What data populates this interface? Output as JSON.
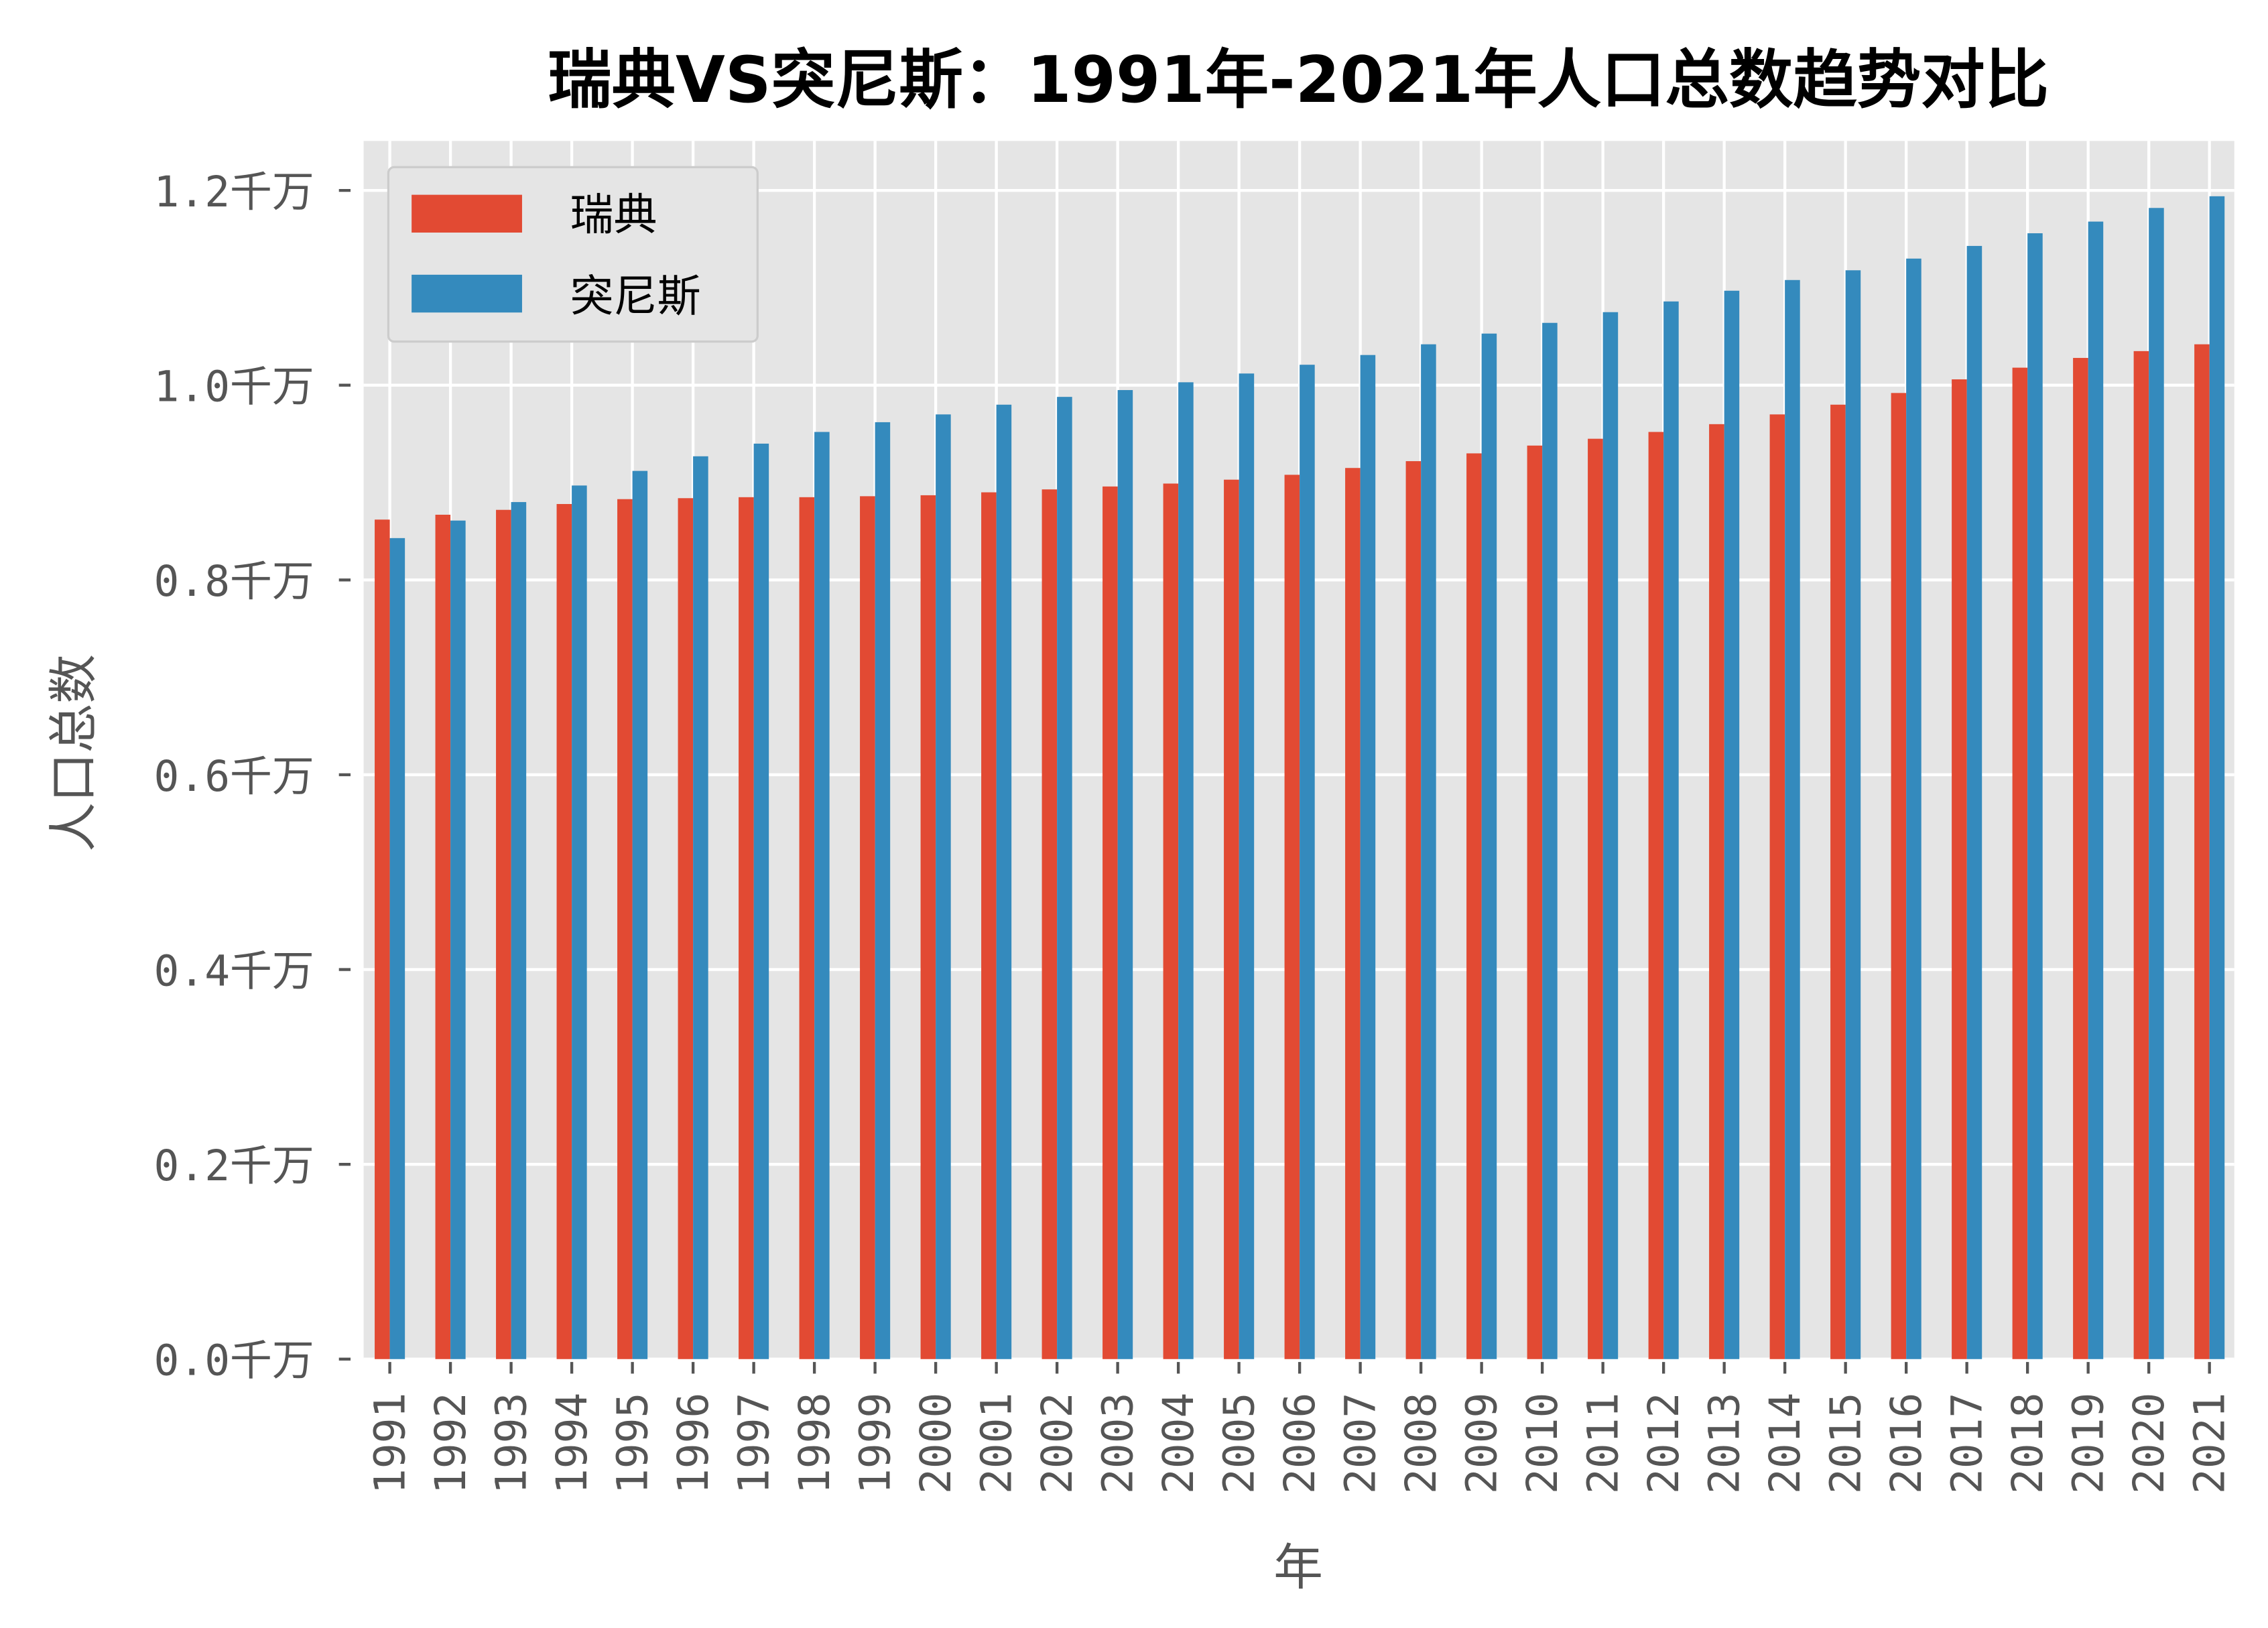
{
  "chart_data": {
    "type": "bar",
    "title": "瑞典VS突尼斯：1991年-2021年人口总数趋势对比",
    "xlabel": "年",
    "ylabel": "人口总数",
    "ylim": [
      0,
      1.25
    ],
    "yticks": [
      0,
      0.2,
      0.4,
      0.6,
      0.8,
      1.0,
      1.2
    ],
    "ytick_labels": [
      "0.0千万",
      "0.2千万",
      "0.4千万",
      "0.6千万",
      "0.8千万",
      "1.0千万",
      "1.2千万"
    ],
    "grid": true,
    "legend_position": "top-left",
    "categories": [
      "1991",
      "1992",
      "1993",
      "1994",
      "1995",
      "1996",
      "1997",
      "1998",
      "1999",
      "2000",
      "2001",
      "2002",
      "2003",
      "2004",
      "2005",
      "2006",
      "2007",
      "2008",
      "2009",
      "2010",
      "2011",
      "2012",
      "2013",
      "2014",
      "2015",
      "2016",
      "2017",
      "2018",
      "2019",
      "2020",
      "2021"
    ],
    "series": [
      {
        "name": "瑞典",
        "color": "#E24A33",
        "values": [
          0.862,
          0.867,
          0.872,
          0.878,
          0.883,
          0.884,
          0.885,
          0.885,
          0.886,
          0.887,
          0.89,
          0.893,
          0.896,
          0.899,
          0.903,
          0.908,
          0.915,
          0.922,
          0.93,
          0.938,
          0.945,
          0.952,
          0.96,
          0.97,
          0.98,
          0.992,
          1.006,
          1.018,
          1.028,
          1.035,
          1.042
        ]
      },
      {
        "name": "突尼斯",
        "color": "#348ABD",
        "values": [
          0.843,
          0.861,
          0.88,
          0.897,
          0.912,
          0.927,
          0.94,
          0.952,
          0.962,
          0.97,
          0.98,
          0.988,
          0.995,
          1.003,
          1.012,
          1.021,
          1.031,
          1.042,
          1.053,
          1.064,
          1.075,
          1.086,
          1.097,
          1.108,
          1.118,
          1.13,
          1.143,
          1.156,
          1.168,
          1.182,
          1.194
        ]
      }
    ]
  }
}
